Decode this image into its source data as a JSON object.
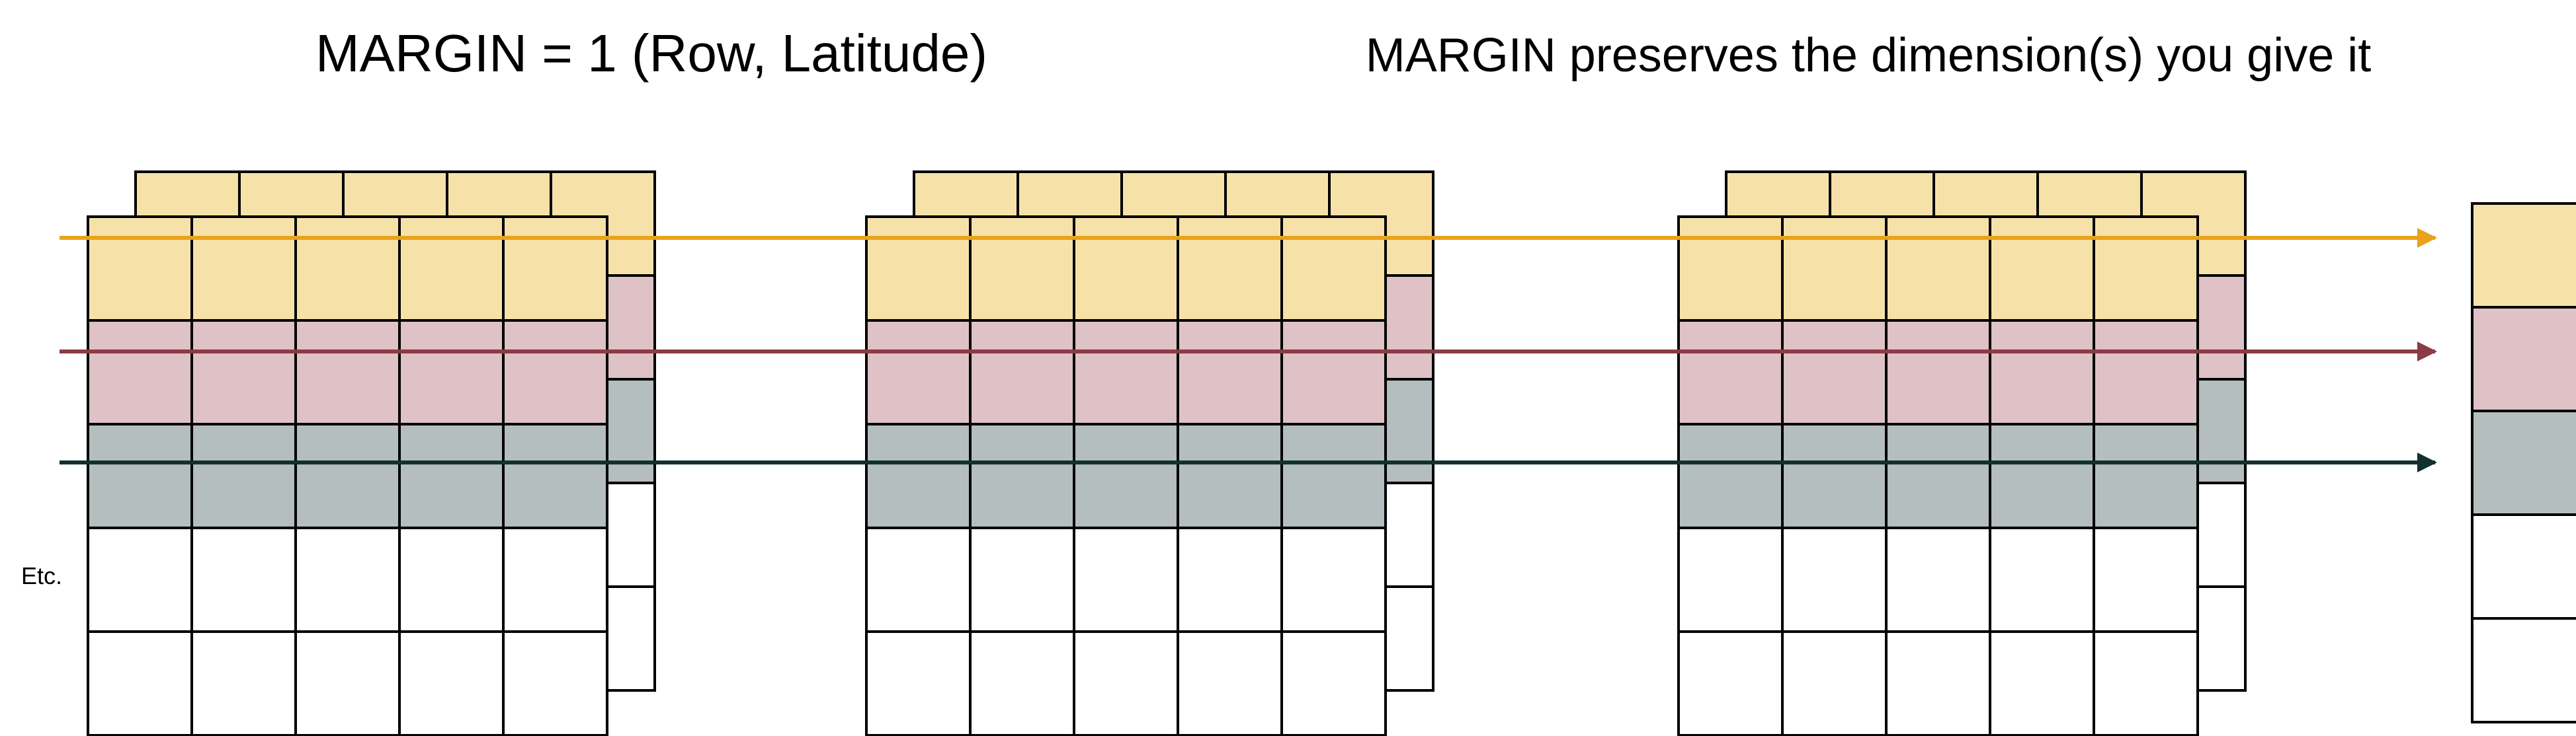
{
  "title_left": "MARGIN = 1 (Row, Latitude)",
  "title_right": "MARGIN preserves the dimension(s) you give it",
  "side_label": "Etc.",
  "colors": {
    "row1_fill": "#F6E2A9",
    "row2_fill": "#DEC2C5",
    "row3_fill": "#B4BEBF",
    "empty_fill": "#FFFFFF",
    "arrow1": "#E8A31B",
    "arrow2": "#8C3A45",
    "arrow3": "#12302E",
    "grid_line": "#000000"
  },
  "grid": {
    "rows": 5,
    "cols": 5,
    "layers": 3,
    "highlighted_rows": 3
  },
  "result_vector": {
    "cells": 5,
    "highlighted_cells": 3
  }
}
